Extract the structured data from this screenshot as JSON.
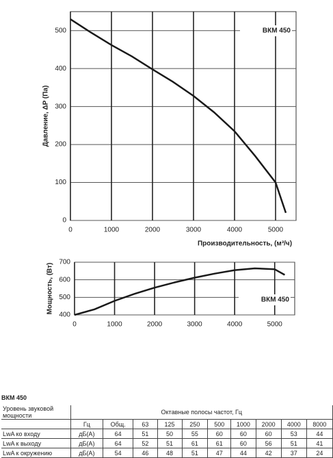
{
  "chart_data": [
    {
      "type": "line",
      "y_label": "Давление, ΔP (Па)",
      "x_label": "Производительность, (м³/ч)",
      "x": [
        0,
        500,
        1000,
        1500,
        2000,
        2500,
        3000,
        3500,
        4000,
        4500,
        5000,
        5250
      ],
      "series": [
        {
          "name": "ВКМ 450",
          "color": "#1a1a1a",
          "values": [
            530,
            495,
            462,
            432,
            398,
            365,
            328,
            285,
            235,
            170,
            100,
            20
          ]
        }
      ],
      "xlim": [
        0,
        5500
      ],
      "xticks": [
        0,
        1000,
        2000,
        3000,
        4000,
        5000
      ],
      "ylim": [
        0,
        550
      ],
      "yticks": [
        0,
        100,
        200,
        300,
        400,
        500
      ],
      "grid": true
    },
    {
      "type": "line",
      "y_label": "Мощность, (Вт)",
      "x": [
        0,
        500,
        1000,
        1500,
        2000,
        2500,
        3000,
        3500,
        4000,
        4500,
        5000,
        5250
      ],
      "series": [
        {
          "name": "ВКМ 450",
          "color": "#1a1a1a",
          "values": [
            400,
            432,
            480,
            520,
            555,
            585,
            612,
            635,
            655,
            665,
            660,
            628
          ]
        }
      ],
      "xlim": [
        0,
        5500
      ],
      "xticks": [
        0,
        1000,
        2000,
        3000,
        4000,
        5000
      ],
      "ylim": [
        400,
        700
      ],
      "yticks": [
        400,
        500,
        600,
        700
      ],
      "grid": true
    }
  ],
  "table": {
    "title": "ВКМ 450",
    "row_header": "Уровень звуковой мощности",
    "group_header": "Октавные полосы частот, Гц",
    "columns": [
      "Гц",
      "Общ.",
      "63",
      "125",
      "250",
      "500",
      "1000",
      "2000",
      "4000",
      "8000"
    ],
    "rows": [
      [
        "LwA ко входу",
        "дБ(А)",
        64,
        51,
        50,
        55,
        60,
        60,
        60,
        53,
        44
      ],
      [
        "LwA к выходу",
        "дБ(А)",
        64,
        52,
        51,
        61,
        61,
        60,
        56,
        51,
        41
      ],
      [
        "LwA к окружению",
        "дБ(А)",
        54,
        46,
        48,
        51,
        47,
        44,
        42,
        37,
        24
      ]
    ]
  }
}
